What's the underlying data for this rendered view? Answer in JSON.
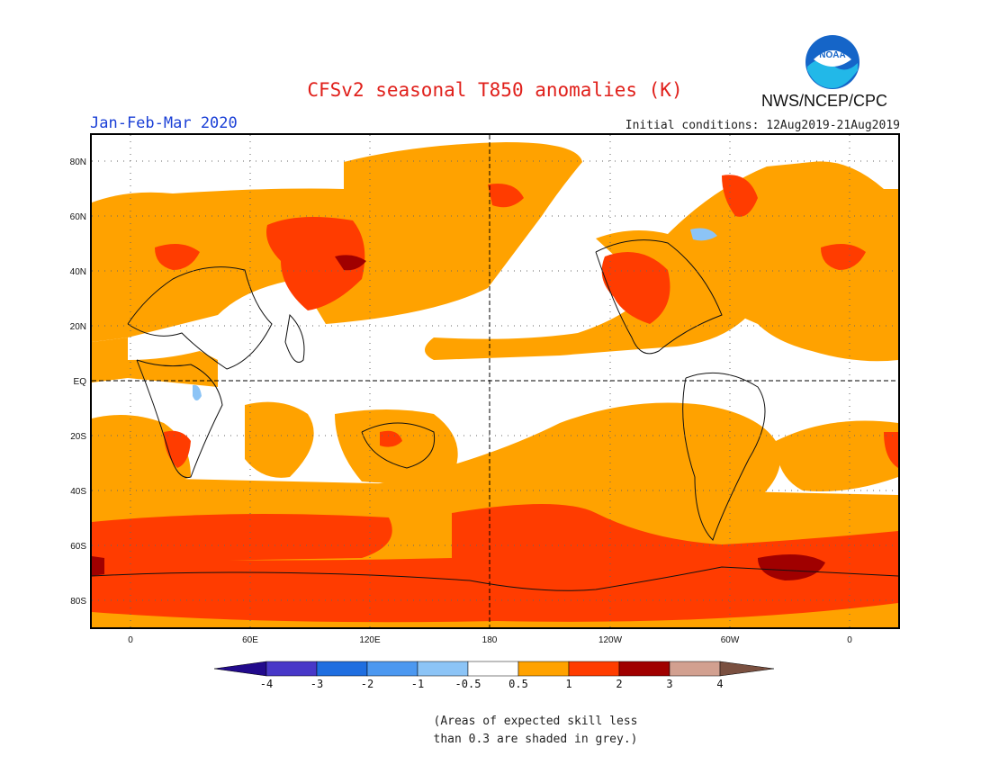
{
  "header": {
    "title": "CFSv2 seasonal T850 anomalies (K)",
    "period": "Jan-Feb-Mar 2020",
    "initial_conditions": "Initial conditions: 12Aug2019-21Aug2019",
    "agency": "NWS/NCEP/CPC",
    "logo_text": "NOAA"
  },
  "map": {
    "lat_labels": [
      "80N",
      "60N",
      "40N",
      "20N",
      "EQ",
      "20S",
      "40S",
      "60S",
      "80S"
    ],
    "lon_labels": [
      "0",
      "60E",
      "120E",
      "180",
      "120W",
      "60W",
      "0"
    ],
    "reference_lines": [
      "EQ",
      "180"
    ]
  },
  "legend": {
    "tick_labels": [
      "-4",
      "-3",
      "-2",
      "-1",
      "-0.5",
      "0.5",
      "1",
      "2",
      "3",
      "4"
    ],
    "colors": {
      "below_-4": "#220a8c",
      "-4_to_-3": "#4838c8",
      "-3_to_-2": "#1f6ee0",
      "-2_to_-1": "#4c98f0",
      "-1_to_-0.5": "#8cc4f6",
      "-0.5_to_0.5": "#ffffff",
      "0.5_to_1": "#ffa200",
      "1_to_2": "#ff3c00",
      "2_to_3": "#a00000",
      "3_to_4": "#d2a090",
      "above_4": "#7a5040"
    },
    "note_line1": "(Areas of expected skill less",
    "note_line2": "than 0.3 are shaded in grey.)"
  }
}
